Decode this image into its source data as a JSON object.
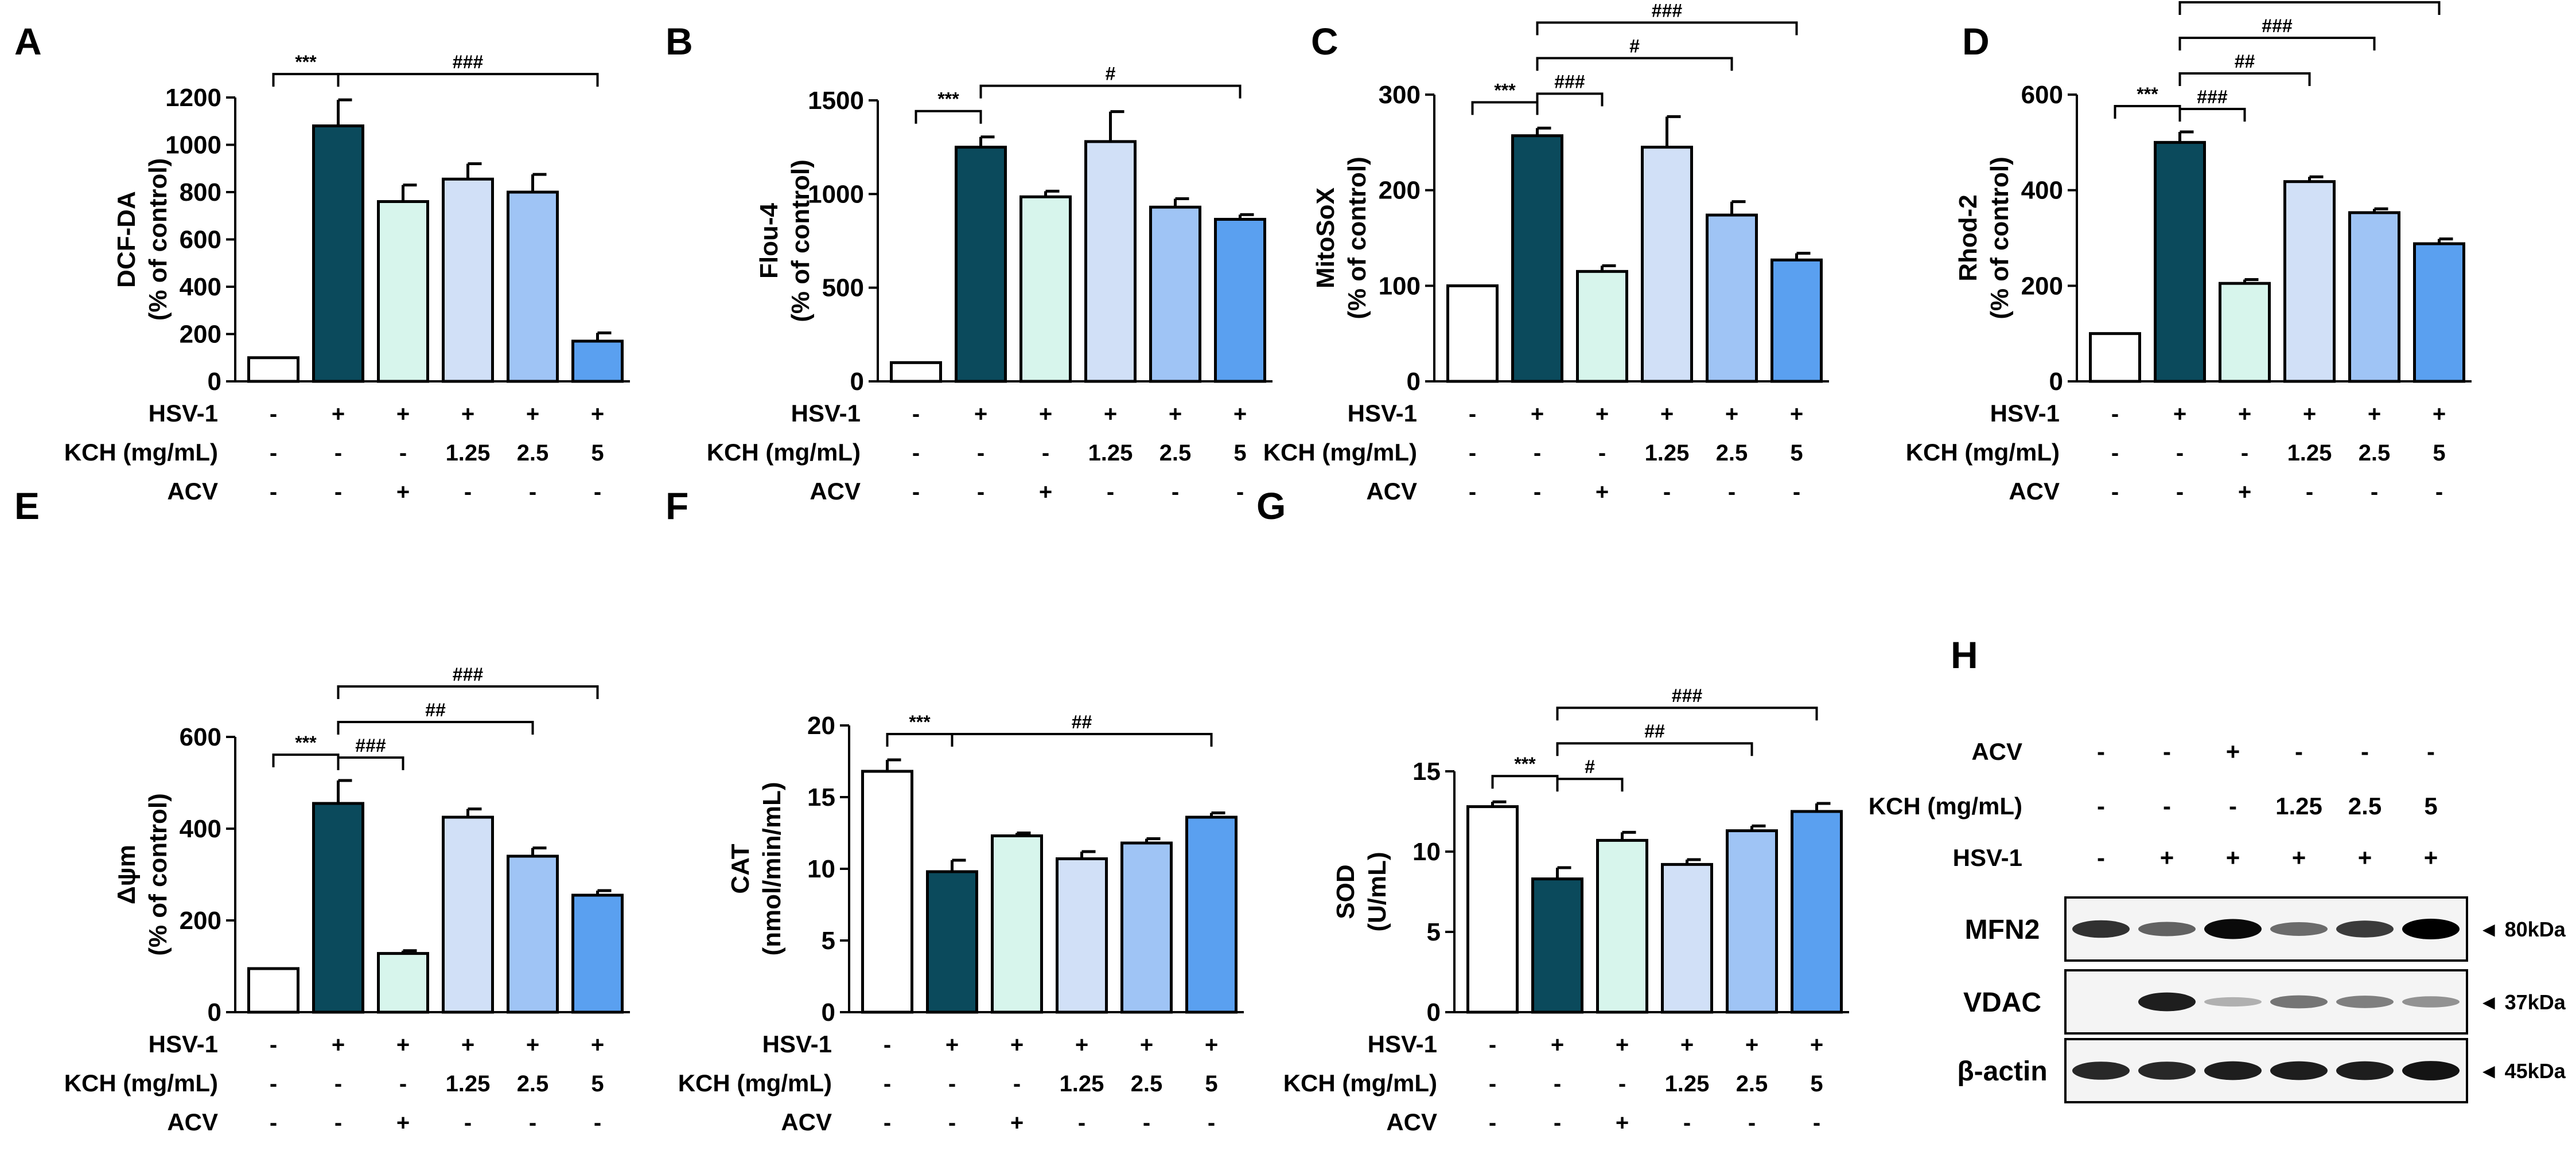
{
  "colors": {
    "bars": [
      "#ffffff",
      "#0b4a5c",
      "#d7f5ec",
      "#d1e0f7",
      "#9fc4f5",
      "#5aa0f0"
    ],
    "outline": "#000000"
  },
  "chart_data": [
    {
      "type": "bar",
      "panel": "A",
      "ylabel": [
        "DCF-DA",
        "(% of control)"
      ],
      "ylim": [
        0,
        1200
      ],
      "yticks": [
        "0",
        "200",
        "400",
        "600",
        "800",
        "1000",
        "1200"
      ],
      "values": [
        100,
        1080,
        760,
        855,
        800,
        170
      ],
      "errors": [
        0,
        110,
        70,
        65,
        75,
        35
      ],
      "conditions": [
        {
          "label": "HSV-1",
          "values": [
            "-",
            "+",
            "+",
            "+",
            "+",
            "+"
          ]
        },
        {
          "label": "KCH (mg/mL)",
          "values": [
            "-",
            "-",
            "-",
            "1.25",
            "2.5",
            "5"
          ]
        },
        {
          "label": "ACV",
          "values": [
            "-",
            "-",
            "+",
            "-",
            "-",
            "-"
          ]
        }
      ],
      "significance": [
        {
          "from": 0,
          "to": 1,
          "label": "***"
        },
        {
          "from": 1,
          "to": 5,
          "label": "###"
        }
      ]
    },
    {
      "type": "bar",
      "panel": "B",
      "ylabel": [
        "Flou-4",
        "(% of control)"
      ],
      "ylim": [
        0,
        1500
      ],
      "yticks": [
        "0",
        "500",
        "1000",
        "1500"
      ],
      "values": [
        100,
        1250,
        985,
        1280,
        930,
        865
      ],
      "errors": [
        0,
        55,
        30,
        160,
        45,
        25
      ],
      "conditions": [
        {
          "label": "HSV-1",
          "values": [
            "-",
            "+",
            "+",
            "+",
            "+",
            "+"
          ]
        },
        {
          "label": "KCH (mg/mL)",
          "values": [
            "-",
            "-",
            "-",
            "1.25",
            "2.5",
            "5"
          ]
        },
        {
          "label": "ACV",
          "values": [
            "-",
            "-",
            "+",
            "-",
            "-",
            "-"
          ]
        }
      ],
      "significance": [
        {
          "from": 0,
          "to": 1,
          "label": "***"
        },
        {
          "from": 1,
          "to": 5,
          "label": "#"
        }
      ]
    },
    {
      "type": "bar",
      "panel": "C",
      "ylabel": [
        "MitoSoX",
        "(% of control)"
      ],
      "ylim": [
        0,
        300
      ],
      "yticks": [
        "0",
        "100",
        "200",
        "300"
      ],
      "values": [
        100,
        257,
        115,
        245,
        174,
        127
      ],
      "errors": [
        0,
        8,
        6,
        32,
        14,
        7
      ],
      "conditions": [
        {
          "label": "HSV-1",
          "values": [
            "-",
            "+",
            "+",
            "+",
            "+",
            "+"
          ]
        },
        {
          "label": "KCH (mg/mL)",
          "values": [
            "-",
            "-",
            "-",
            "1.25",
            "2.5",
            "5"
          ]
        },
        {
          "label": "ACV",
          "values": [
            "-",
            "-",
            "+",
            "-",
            "-",
            "-"
          ]
        }
      ],
      "significance": [
        {
          "from": 0,
          "to": 1,
          "label": "***"
        },
        {
          "from": 1,
          "to": 2,
          "label": "###"
        },
        {
          "from": 1,
          "to": 4,
          "label": "#"
        },
        {
          "from": 1,
          "to": 5,
          "label": "###"
        }
      ]
    },
    {
      "type": "bar",
      "panel": "D",
      "ylabel": [
        "Rhod-2",
        "(% of control)"
      ],
      "ylim": [
        0,
        600
      ],
      "yticks": [
        "0",
        "200",
        "400",
        "600"
      ],
      "values": [
        100,
        500,
        205,
        418,
        353,
        288
      ],
      "errors": [
        0,
        22,
        8,
        10,
        8,
        10
      ],
      "conditions": [
        {
          "label": "HSV-1",
          "values": [
            "-",
            "+",
            "+",
            "+",
            "+",
            "+"
          ]
        },
        {
          "label": "KCH (mg/mL)",
          "values": [
            "-",
            "-",
            "-",
            "1.25",
            "2.5",
            "5"
          ]
        },
        {
          "label": "ACV",
          "values": [
            "-",
            "-",
            "+",
            "-",
            "-",
            "-"
          ]
        }
      ],
      "significance": [
        {
          "from": 0,
          "to": 1,
          "label": "***"
        },
        {
          "from": 1,
          "to": 2,
          "label": "###"
        },
        {
          "from": 1,
          "to": 3,
          "label": "##"
        },
        {
          "from": 1,
          "to": 4,
          "label": "###"
        },
        {
          "from": 1,
          "to": 5,
          "label": "###"
        }
      ]
    },
    {
      "type": "bar",
      "panel": "E",
      "ylabel": [
        "Δψm",
        "(% of control)"
      ],
      "ylim": [
        0,
        600
      ],
      "yticks": [
        "0",
        "200",
        "400",
        "600"
      ],
      "values": [
        95,
        455,
        128,
        425,
        340,
        255
      ],
      "errors": [
        0,
        50,
        6,
        18,
        18,
        10
      ],
      "conditions": [
        {
          "label": "HSV-1",
          "values": [
            "-",
            "+",
            "+",
            "+",
            "+",
            "+"
          ]
        },
        {
          "label": "KCH (mg/mL)",
          "values": [
            "-",
            "-",
            "-",
            "1.25",
            "2.5",
            "5"
          ]
        },
        {
          "label": "ACV",
          "values": [
            "-",
            "-",
            "+",
            "-",
            "-",
            "-"
          ]
        }
      ],
      "significance": [
        {
          "from": 0,
          "to": 1,
          "label": "***"
        },
        {
          "from": 1,
          "to": 2,
          "label": "###"
        },
        {
          "from": 1,
          "to": 4,
          "label": "##"
        },
        {
          "from": 1,
          "to": 5,
          "label": "###"
        }
      ]
    },
    {
      "type": "bar",
      "panel": "F",
      "ylabel": [
        "CAT",
        "(nmol/min/mL)"
      ],
      "ylim": [
        0,
        20
      ],
      "yticks": [
        "0",
        "5",
        "10",
        "15",
        "20"
      ],
      "values": [
        16.8,
        9.8,
        12.3,
        10.7,
        11.8,
        13.6
      ],
      "errors": [
        0.8,
        0.8,
        0.2,
        0.5,
        0.3,
        0.3
      ],
      "conditions": [
        {
          "label": "HSV-1",
          "values": [
            "-",
            "+",
            "+",
            "+",
            "+",
            "+"
          ]
        },
        {
          "label": "KCH (mg/mL)",
          "values": [
            "-",
            "-",
            "-",
            "1.25",
            "2.5",
            "5"
          ]
        },
        {
          "label": "ACV",
          "values": [
            "-",
            "-",
            "+",
            "-",
            "-",
            "-"
          ]
        }
      ],
      "significance": [
        {
          "from": 0,
          "to": 1,
          "label": "***"
        },
        {
          "from": 1,
          "to": 5,
          "label": "##"
        }
      ]
    },
    {
      "type": "bar",
      "panel": "G",
      "ylabel": [
        "SOD",
        "(U/mL)"
      ],
      "ylim": [
        0,
        15
      ],
      "yticks": [
        "0",
        "5",
        "10",
        "15"
      ],
      "values": [
        12.8,
        8.3,
        10.7,
        9.2,
        11.3,
        12.5
      ],
      "errors": [
        0.3,
        0.7,
        0.5,
        0.3,
        0.3,
        0.5
      ],
      "conditions": [
        {
          "label": "HSV-1",
          "values": [
            "-",
            "+",
            "+",
            "+",
            "+",
            "+"
          ]
        },
        {
          "label": "KCH (mg/mL)",
          "values": [
            "-",
            "-",
            "-",
            "1.25",
            "2.5",
            "5"
          ]
        },
        {
          "label": "ACV",
          "values": [
            "-",
            "-",
            "+",
            "-",
            "-",
            "-"
          ]
        }
      ],
      "significance": [
        {
          "from": 0,
          "to": 1,
          "label": "***"
        },
        {
          "from": 1,
          "to": 2,
          "label": "#"
        },
        {
          "from": 1,
          "to": 4,
          "label": "##"
        },
        {
          "from": 1,
          "to": 5,
          "label": "###"
        }
      ]
    }
  ],
  "blot": {
    "panel": "H",
    "conditions": [
      {
        "label": "ACV",
        "values": [
          "-",
          "-",
          "+",
          "-",
          "-",
          "-"
        ]
      },
      {
        "label": "KCH (mg/mL)",
        "values": [
          "-",
          "-",
          "-",
          "1.25",
          "2.5",
          "5"
        ]
      },
      {
        "label": "HSV-1",
        "values": [
          "-",
          "+",
          "+",
          "+",
          "+",
          "+"
        ]
      }
    ],
    "rows": [
      {
        "name": "MFN2",
        "kda": "◄ 80kDa",
        "intensity": [
          0.75,
          0.5,
          0.95,
          0.45,
          0.7,
          1.0
        ]
      },
      {
        "name": "VDAC",
        "kda": "◄ 37kDa",
        "intensity": [
          0.0,
          0.85,
          0.1,
          0.4,
          0.35,
          0.25
        ]
      },
      {
        "name": "β-actin",
        "kda": "◄ 45kDa",
        "intensity": [
          0.8,
          0.8,
          0.85,
          0.85,
          0.85,
          0.9
        ]
      }
    ]
  }
}
